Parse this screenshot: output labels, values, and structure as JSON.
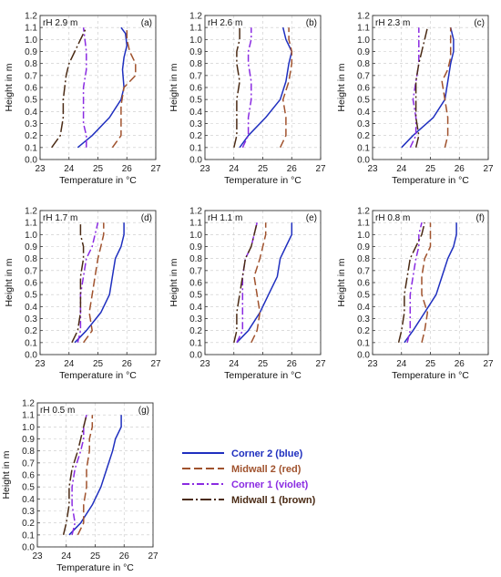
{
  "chart_data": [
    {
      "type": "line",
      "panel": "(a)",
      "annotation": "rH 2.9 m",
      "xlabel": "Temperature in °C",
      "ylabel": "Height in m",
      "xlim": [
        23,
        27
      ],
      "ylim": [
        0,
        1.2
      ],
      "xticks": [
        "23",
        "24",
        "25",
        "26",
        "27"
      ],
      "yticks": [
        "0.0",
        "0.1",
        "0.2",
        "0.3",
        "0.4",
        "0.5",
        "0.6",
        "0.7",
        "0.8",
        "0.9",
        "1.0",
        "1.1",
        "1.2"
      ],
      "grid": true,
      "series": [
        {
          "name": "Corner 2 (blue)",
          "color": "#1f2fbf",
          "dash": "solid",
          "x": [
            24.3,
            24.8,
            25.4,
            25.8,
            25.9,
            25.85,
            25.9,
            26.0,
            25.95,
            25.8
          ],
          "y": [
            0.1,
            0.2,
            0.35,
            0.5,
            0.6,
            0.75,
            0.85,
            0.95,
            1.05,
            1.1
          ]
        },
        {
          "name": "Midwall 2 (red)",
          "color": "#a0522d",
          "dash": "long-dash",
          "x": [
            25.5,
            25.8,
            25.8,
            25.8,
            25.9,
            26.3,
            26.3,
            26.1,
            26.0,
            26.0
          ],
          "y": [
            0.1,
            0.2,
            0.3,
            0.45,
            0.6,
            0.7,
            0.8,
            0.9,
            1.0,
            1.1
          ]
        },
        {
          "name": "Corner 1 (violet)",
          "color": "#8a2be2",
          "dash": "dash-dot",
          "x": [
            24.6,
            24.6,
            24.5,
            24.5,
            24.5,
            24.6,
            24.6,
            24.55,
            24.5
          ],
          "y": [
            0.1,
            0.2,
            0.3,
            0.45,
            0.6,
            0.75,
            0.9,
            1.0,
            1.1
          ]
        },
        {
          "name": "Midwall 1 (brown)",
          "color": "#4a2a14",
          "dash": "long-dash-dot",
          "x": [
            23.4,
            23.7,
            23.8,
            23.8,
            23.9,
            24.0,
            24.2,
            24.4,
            24.6
          ],
          "y": [
            0.1,
            0.2,
            0.35,
            0.5,
            0.7,
            0.8,
            0.9,
            1.0,
            1.1
          ]
        }
      ]
    },
    {
      "type": "line",
      "panel": "(b)",
      "annotation": "rH 2.6 m",
      "xlabel": "Temperature in °C",
      "ylabel": "Height in m",
      "xlim": [
        23,
        27
      ],
      "ylim": [
        0,
        1.2
      ],
      "xticks": [
        "23",
        "24",
        "25",
        "26",
        "27"
      ],
      "yticks": [
        "0.0",
        "0.1",
        "0.2",
        "0.3",
        "0.4",
        "0.5",
        "0.6",
        "0.7",
        "0.8",
        "0.9",
        "1.0",
        "1.1",
        "1.2"
      ],
      "grid": true,
      "series": [
        {
          "name": "Corner 2 (blue)",
          "color": "#1f2fbf",
          "dash": "solid",
          "x": [
            24.2,
            24.5,
            25.1,
            25.6,
            25.8,
            25.9,
            26.0,
            25.8,
            25.7
          ],
          "y": [
            0.1,
            0.2,
            0.35,
            0.5,
            0.65,
            0.8,
            0.9,
            1.0,
            1.1
          ]
        },
        {
          "name": "Midwall 2 (red)",
          "color": "#a0522d",
          "dash": "long-dash",
          "x": [
            25.6,
            25.8,
            25.8,
            25.7,
            25.9,
            26.0,
            26.0,
            25.9,
            25.9
          ],
          "y": [
            0.1,
            0.2,
            0.35,
            0.5,
            0.65,
            0.8,
            0.9,
            1.0,
            1.1
          ]
        },
        {
          "name": "Corner 1 (violet)",
          "color": "#8a2be2",
          "dash": "dash-dot",
          "x": [
            24.3,
            24.5,
            24.5,
            24.6,
            24.6,
            24.5,
            24.5,
            24.6,
            24.6
          ],
          "y": [
            0.1,
            0.2,
            0.35,
            0.5,
            0.65,
            0.8,
            0.9,
            1.0,
            1.1
          ]
        },
        {
          "name": "Midwall 1 (brown)",
          "color": "#4a2a14",
          "dash": "long-dash-dot",
          "x": [
            24.0,
            24.1,
            24.1,
            24.1,
            24.2,
            24.1,
            24.1,
            24.2,
            24.2
          ],
          "y": [
            0.1,
            0.2,
            0.35,
            0.5,
            0.65,
            0.8,
            0.9,
            1.0,
            1.1
          ]
        }
      ]
    },
    {
      "type": "line",
      "panel": "(c)",
      "annotation": "rH 2.3 m",
      "xlabel": "Temperature in °C",
      "ylabel": "Height in m",
      "xlim": [
        23,
        27
      ],
      "ylim": [
        0,
        1.2
      ],
      "xticks": [
        "23",
        "24",
        "25",
        "26",
        "27"
      ],
      "yticks": [
        "0.0",
        "0.1",
        "0.2",
        "0.3",
        "0.4",
        "0.5",
        "0.6",
        "0.7",
        "0.8",
        "0.9",
        "1.0",
        "1.1",
        "1.2"
      ],
      "grid": true,
      "series": [
        {
          "name": "Corner 2 (blue)",
          "color": "#1f2fbf",
          "dash": "solid",
          "x": [
            24.0,
            24.4,
            25.1,
            25.5,
            25.6,
            25.7,
            25.8,
            25.8,
            25.7
          ],
          "y": [
            0.1,
            0.2,
            0.35,
            0.5,
            0.65,
            0.8,
            0.9,
            1.0,
            1.1
          ]
        },
        {
          "name": "Midwall 2 (red)",
          "color": "#a0522d",
          "dash": "long-dash",
          "x": [
            25.5,
            25.6,
            25.6,
            25.5,
            25.4,
            25.6,
            25.7,
            25.7,
            25.7
          ],
          "y": [
            0.1,
            0.2,
            0.35,
            0.5,
            0.65,
            0.75,
            0.85,
            1.0,
            1.1
          ]
        },
        {
          "name": "Corner 1 (violet)",
          "color": "#8a2be2",
          "dash": "dash-dot",
          "x": [
            24.3,
            24.5,
            24.5,
            24.4,
            24.5,
            24.6,
            24.6,
            24.6,
            24.6
          ],
          "y": [
            0.1,
            0.2,
            0.35,
            0.5,
            0.65,
            0.8,
            0.9,
            1.0,
            1.1
          ]
        },
        {
          "name": "Midwall 1 (brown)",
          "color": "#4a2a14",
          "dash": "long-dash-dot",
          "x": [
            24.5,
            24.6,
            24.5,
            24.5,
            24.5,
            24.6,
            24.7,
            24.8,
            24.9
          ],
          "y": [
            0.1,
            0.2,
            0.35,
            0.5,
            0.65,
            0.8,
            0.9,
            1.0,
            1.1
          ]
        }
      ]
    },
    {
      "type": "line",
      "panel": "(d)",
      "annotation": "rH 1.7 m",
      "xlabel": "Temperature in °C",
      "ylabel": "Height in m",
      "xlim": [
        23,
        27
      ],
      "ylim": [
        0,
        1.2
      ],
      "xticks": [
        "23",
        "24",
        "25",
        "26",
        "27"
      ],
      "yticks": [
        "0.0",
        "0.1",
        "0.2",
        "0.3",
        "0.4",
        "0.5",
        "0.6",
        "0.7",
        "0.8",
        "0.9",
        "1.0",
        "1.1",
        "1.2"
      ],
      "grid": true,
      "series": [
        {
          "name": "Corner 2 (blue)",
          "color": "#1f2fbf",
          "dash": "solid",
          "x": [
            24.2,
            24.6,
            25.1,
            25.4,
            25.5,
            25.6,
            25.8,
            25.9,
            25.9
          ],
          "y": [
            0.1,
            0.2,
            0.35,
            0.5,
            0.65,
            0.8,
            0.9,
            1.0,
            1.1
          ]
        },
        {
          "name": "Midwall 2 (red)",
          "color": "#a0522d",
          "dash": "long-dash",
          "x": [
            24.5,
            24.8,
            24.7,
            24.8,
            24.9,
            25.0,
            25.1,
            25.2,
            25.2
          ],
          "y": [
            0.1,
            0.2,
            0.35,
            0.5,
            0.65,
            0.8,
            0.9,
            1.0,
            1.1
          ]
        },
        {
          "name": "Corner 1 (violet)",
          "color": "#8a2be2",
          "dash": "dash-dot",
          "x": [
            24.3,
            24.4,
            24.4,
            24.4,
            24.5,
            24.6,
            24.8,
            24.9,
            25.0
          ],
          "y": [
            0.1,
            0.2,
            0.35,
            0.5,
            0.65,
            0.8,
            0.9,
            1.0,
            1.1
          ]
        },
        {
          "name": "Midwall 1 (brown)",
          "color": "#4a2a14",
          "dash": "long-dash-dot",
          "x": [
            24.1,
            24.3,
            24.4,
            24.4,
            24.4,
            24.5,
            24.5,
            24.4,
            24.4
          ],
          "y": [
            0.1,
            0.2,
            0.35,
            0.5,
            0.65,
            0.8,
            0.9,
            1.0,
            1.1
          ]
        }
      ]
    },
    {
      "type": "line",
      "panel": "(e)",
      "annotation": "rH 1.1 m",
      "xlabel": "Temperature in °C",
      "ylabel": "Height in m",
      "xlim": [
        23,
        27
      ],
      "ylim": [
        0,
        1.2
      ],
      "xticks": [
        "23",
        "24",
        "25",
        "26",
        "27"
      ],
      "yticks": [
        "0.0",
        "0.1",
        "0.2",
        "0.3",
        "0.4",
        "0.5",
        "0.6",
        "0.7",
        "0.8",
        "0.9",
        "1.0",
        "1.1",
        "1.2"
      ],
      "grid": true,
      "series": [
        {
          "name": "Corner 2 (blue)",
          "color": "#1f2fbf",
          "dash": "solid",
          "x": [
            24.1,
            24.5,
            24.9,
            25.2,
            25.5,
            25.6,
            25.8,
            26.0,
            26.0
          ],
          "y": [
            0.1,
            0.2,
            0.35,
            0.5,
            0.65,
            0.8,
            0.9,
            1.0,
            1.1
          ]
        },
        {
          "name": "Midwall 2 (red)",
          "color": "#a0522d",
          "dash": "long-dash",
          "x": [
            24.6,
            24.8,
            24.9,
            24.8,
            24.7,
            24.9,
            25.0,
            25.1,
            25.1
          ],
          "y": [
            0.1,
            0.2,
            0.35,
            0.5,
            0.65,
            0.8,
            0.9,
            1.0,
            1.1
          ]
        },
        {
          "name": "Corner 1 (violet)",
          "color": "#8a2be2",
          "dash": "dash-dot",
          "x": [
            24.1,
            24.3,
            24.3,
            24.3,
            24.3,
            24.4,
            24.6,
            24.7,
            24.8
          ],
          "y": [
            0.1,
            0.2,
            0.35,
            0.5,
            0.65,
            0.8,
            0.9,
            1.0,
            1.1
          ]
        },
        {
          "name": "Midwall 1 (brown)",
          "color": "#4a2a14",
          "dash": "long-dash-dot",
          "x": [
            24.0,
            24.1,
            24.1,
            24.2,
            24.3,
            24.4,
            24.6,
            24.7,
            24.8
          ],
          "y": [
            0.1,
            0.2,
            0.35,
            0.5,
            0.65,
            0.8,
            0.9,
            1.0,
            1.1
          ]
        }
      ]
    },
    {
      "type": "line",
      "panel": "(f)",
      "annotation": "rH 0.8 m",
      "xlabel": "Temperature in °C",
      "ylabel": "Height in m",
      "xlim": [
        23,
        27
      ],
      "ylim": [
        0,
        1.2
      ],
      "xticks": [
        "23",
        "24",
        "25",
        "26",
        "27"
      ],
      "yticks": [
        "0.0",
        "0.1",
        "0.2",
        "0.3",
        "0.4",
        "0.5",
        "0.6",
        "0.7",
        "0.8",
        "0.9",
        "1.0",
        "1.1",
        "1.2"
      ],
      "grid": true,
      "series": [
        {
          "name": "Corner 2 (blue)",
          "color": "#1f2fbf",
          "dash": "solid",
          "x": [
            24.1,
            24.4,
            24.8,
            25.2,
            25.4,
            25.6,
            25.8,
            25.9,
            25.9
          ],
          "y": [
            0.1,
            0.2,
            0.35,
            0.5,
            0.65,
            0.8,
            0.9,
            1.0,
            1.1
          ]
        },
        {
          "name": "Midwall 2 (red)",
          "color": "#a0522d",
          "dash": "long-dash",
          "x": [
            24.7,
            24.8,
            24.9,
            24.7,
            24.7,
            24.8,
            25.0,
            25.0,
            25.0
          ],
          "y": [
            0.1,
            0.2,
            0.35,
            0.5,
            0.65,
            0.8,
            0.9,
            1.0,
            1.1
          ]
        },
        {
          "name": "Corner 1 (violet)",
          "color": "#8a2be2",
          "dash": "dash-dot",
          "x": [
            24.2,
            24.3,
            24.3,
            24.3,
            24.4,
            24.5,
            24.6,
            24.6,
            24.7
          ],
          "y": [
            0.1,
            0.2,
            0.35,
            0.5,
            0.65,
            0.8,
            0.9,
            1.0,
            1.1
          ]
        },
        {
          "name": "Midwall 1 (brown)",
          "color": "#4a2a14",
          "dash": "long-dash-dot",
          "x": [
            23.9,
            24.0,
            24.1,
            24.1,
            24.2,
            24.3,
            24.5,
            24.7,
            24.8
          ],
          "y": [
            0.1,
            0.2,
            0.35,
            0.5,
            0.65,
            0.8,
            0.9,
            1.0,
            1.1
          ]
        }
      ]
    },
    {
      "type": "line",
      "panel": "(g)",
      "annotation": "rH 0.5 m",
      "xlabel": "Temperature in °C",
      "ylabel": "Height in m",
      "xlim": [
        23,
        27
      ],
      "ylim": [
        0,
        1.2
      ],
      "xticks": [
        "23",
        "24",
        "25",
        "26",
        "27"
      ],
      "yticks": [
        "0.0",
        "0.1",
        "0.2",
        "0.3",
        "0.4",
        "0.5",
        "0.6",
        "0.7",
        "0.8",
        "0.9",
        "1.0",
        "1.1",
        "1.2"
      ],
      "grid": true,
      "series": [
        {
          "name": "Corner 2 (blue)",
          "color": "#1f2fbf",
          "dash": "solid",
          "x": [
            24.1,
            24.5,
            24.9,
            25.2,
            25.4,
            25.6,
            25.7,
            25.9,
            25.9
          ],
          "y": [
            0.1,
            0.2,
            0.35,
            0.5,
            0.65,
            0.8,
            0.9,
            1.0,
            1.1
          ]
        },
        {
          "name": "Midwall 2 (red)",
          "color": "#a0522d",
          "dash": "long-dash",
          "x": [
            24.4,
            24.6,
            24.6,
            24.7,
            24.7,
            24.8,
            24.8,
            24.9,
            24.9
          ],
          "y": [
            0.1,
            0.2,
            0.35,
            0.5,
            0.65,
            0.8,
            0.9,
            1.0,
            1.1
          ]
        },
        {
          "name": "Corner 1 (violet)",
          "color": "#8a2be2",
          "dash": "dash-dot",
          "x": [
            24.2,
            24.3,
            24.2,
            24.2,
            24.3,
            24.5,
            24.6,
            24.6,
            24.7
          ],
          "y": [
            0.1,
            0.2,
            0.35,
            0.5,
            0.65,
            0.8,
            0.9,
            1.0,
            1.1
          ]
        },
        {
          "name": "Midwall 1 (brown)",
          "color": "#4a2a14",
          "dash": "long-dash-dot",
          "x": [
            23.9,
            24.0,
            24.1,
            24.1,
            24.2,
            24.4,
            24.5,
            24.6,
            24.7
          ],
          "y": [
            0.1,
            0.2,
            0.35,
            0.5,
            0.65,
            0.8,
            0.9,
            1.0,
            1.1
          ]
        }
      ]
    }
  ],
  "legend": {
    "items": [
      {
        "label": "Corner 2 (blue)",
        "color": "#1f2fbf",
        "dash": "solid"
      },
      {
        "label": "Midwall 2 (red)",
        "color": "#a0522d",
        "dash": "long-dash"
      },
      {
        "label": "Corner 1 (violet)",
        "color": "#8a2be2",
        "dash": "dash-dot"
      },
      {
        "label": "Midwall 1 (brown)",
        "color": "#4a2a14",
        "dash": "long-dash-dot"
      }
    ]
  }
}
